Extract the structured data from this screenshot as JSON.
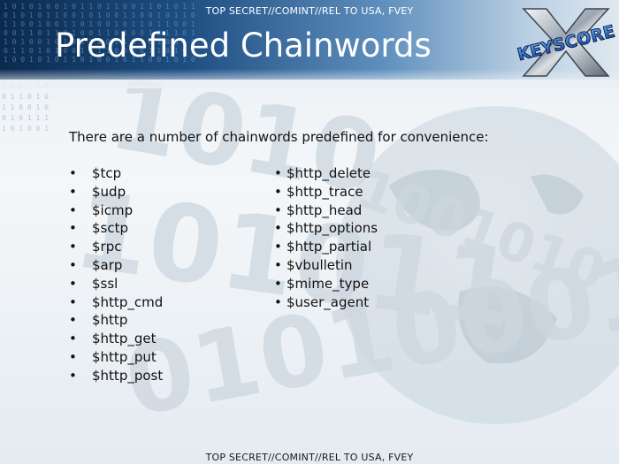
{
  "classification_top": "TOP SECRET//COMINT//REL TO USA, FVEY",
  "classification_bottom": "TOP SECRET//COMINT//REL TO USA, FVEY",
  "title": "Predefined Chainwords",
  "logo_text": "KEYSCORE",
  "intro": "There are a number of chainwords predefined for convenience:",
  "bullet_glyph": "•",
  "left_items": [
    "$tcp",
    "$udp",
    "$icmp",
    "$sctp",
    "$rpc",
    "$arp",
    "$ssl",
    "$http_cmd",
    "$http",
    "$http_get",
    "$http_put",
    "$http_post"
  ],
  "right_items": [
    "$http_delete",
    "$http_trace",
    "$http_head",
    "$http_options",
    "$http_partial",
    "$vbulletin",
    "$mime_type",
    "$user_agent"
  ],
  "colors": {
    "header_dark": "#0b2a4f",
    "header_mid": "#1d4e82",
    "logo_blue": "#1f63b5",
    "text": "#111111"
  }
}
